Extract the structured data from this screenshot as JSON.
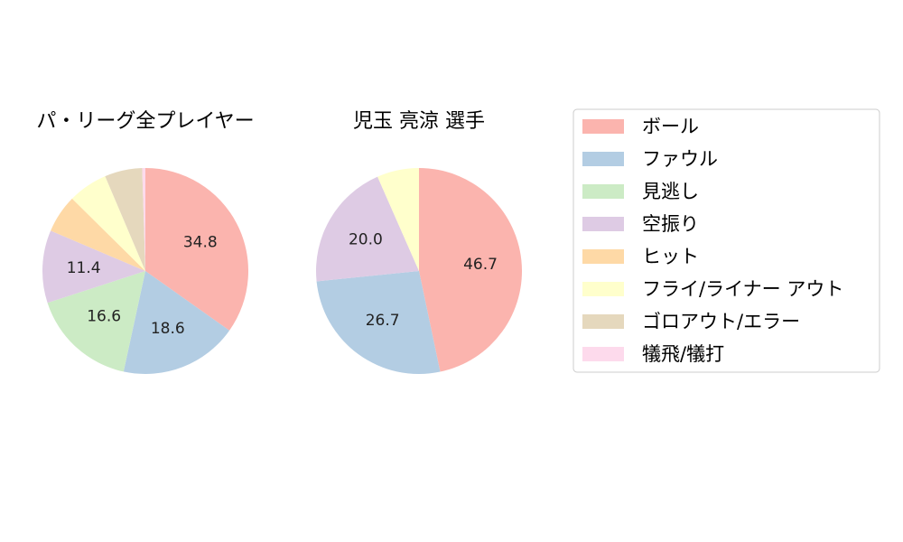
{
  "chart_data": {
    "type": "pie",
    "categories": [
      "ボール",
      "ファウル",
      "見逃し",
      "空振り",
      "ヒット",
      "フライ/ライナー アウト",
      "ゴロアウト/エラー",
      "犠飛/犠打"
    ],
    "colors": [
      "#fbb4ae",
      "#b3cde3",
      "#ccebc5",
      "#decbe4",
      "#fed9a6",
      "#ffffcc",
      "#e5d8bd",
      "#fddaec"
    ],
    "legend_position": "right",
    "pies": [
      {
        "title": "パ・リーグ全プレイヤー",
        "values": [
          34.8,
          18.6,
          16.6,
          11.4,
          6.0,
          6.2,
          5.9,
          0.5
        ],
        "labels": [
          "34.8",
          "18.6",
          "16.6",
          "11.4",
          "",
          "",
          "",
          ""
        ]
      },
      {
        "title": "児玉 亮涼 選手",
        "values": [
          46.7,
          26.7,
          0,
          20.0,
          0,
          6.6,
          0,
          0
        ],
        "labels": [
          "46.7",
          "26.7",
          "",
          "20.0",
          "",
          "",
          "",
          ""
        ]
      }
    ]
  }
}
